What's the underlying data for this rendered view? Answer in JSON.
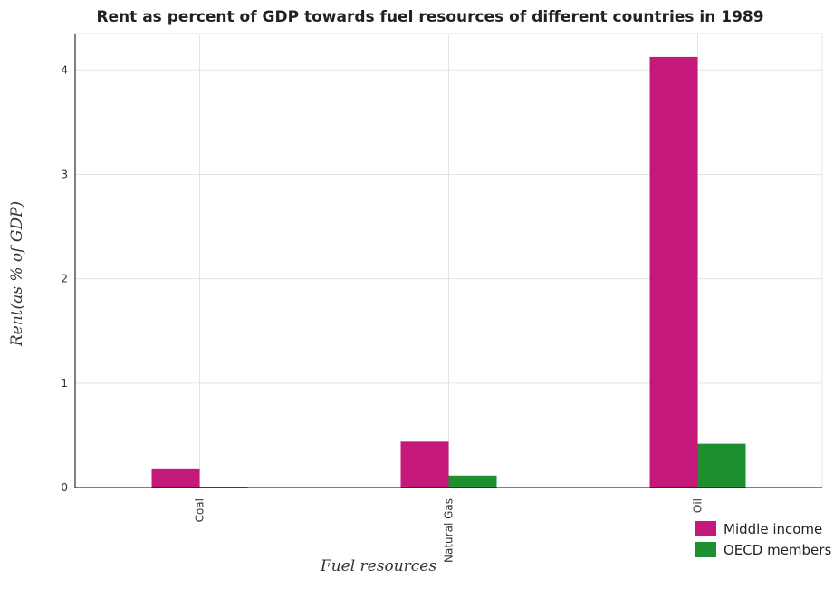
{
  "chart_data": {
    "type": "bar",
    "title": "Rent as percent of GDP towards fuel resources of different countries in 1989",
    "xlabel": "Fuel resources",
    "ylabel": "Rent(as % of GDP)",
    "categories": [
      "Coal",
      "Natural Gas",
      "Oil"
    ],
    "series": [
      {
        "name": "Middle income",
        "color": "#c4187a",
        "values": [
          0.175,
          0.44,
          4.125
        ]
      },
      {
        "name": "OECD members",
        "color": "#1e8f2e",
        "values": [
          0.008,
          0.115,
          0.42
        ]
      }
    ],
    "ylim": [
      0,
      4.35
    ],
    "yticks": [
      0,
      1,
      2,
      3,
      4
    ],
    "grid": true,
    "legend_position": "bottom-right"
  }
}
